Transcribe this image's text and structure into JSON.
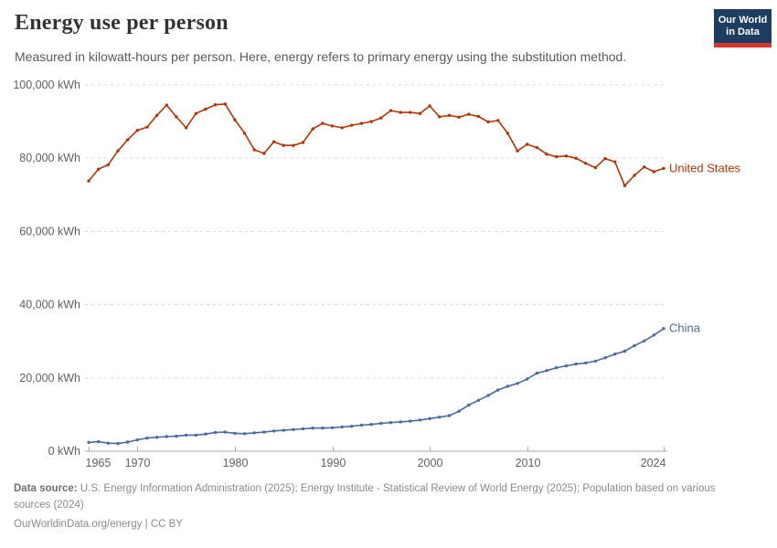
{
  "header": {
    "title": "Energy use per person",
    "subtitle": "Measured in kilowatt-hours per person. Here, energy refers to primary energy using the substitution method.",
    "logo": {
      "line1": "Our World",
      "line2": "in Data",
      "bg_color": "#1d3d63",
      "bar_color": "#d7342e"
    }
  },
  "chart_data": {
    "type": "line",
    "title": "Energy use per person",
    "unit": "kWh",
    "grid": "horizontal-dashed",
    "legend_position": "end-of-line-labels",
    "ylim": [
      0,
      100000
    ],
    "yticks": [
      {
        "value": 0,
        "label": "0 kWh"
      },
      {
        "value": 20000,
        "label": "20,000 kWh"
      },
      {
        "value": 40000,
        "label": "40,000 kWh"
      },
      {
        "value": 60000,
        "label": "60,000 kWh"
      },
      {
        "value": 80000,
        "label": "80,000 kWh"
      },
      {
        "value": 100000,
        "label": "100,000 kWh"
      }
    ],
    "xticks": [
      {
        "value": 1965,
        "label": "1965"
      },
      {
        "value": 1970,
        "label": "1970"
      },
      {
        "value": 1980,
        "label": "1980"
      },
      {
        "value": 1990,
        "label": "1990"
      },
      {
        "value": 2000,
        "label": "2000"
      },
      {
        "value": 2010,
        "label": "2010"
      },
      {
        "value": 2024,
        "label": "2024"
      }
    ],
    "x": [
      1965,
      1966,
      1967,
      1968,
      1969,
      1970,
      1971,
      1972,
      1973,
      1974,
      1975,
      1976,
      1977,
      1978,
      1979,
      1980,
      1981,
      1982,
      1983,
      1984,
      1985,
      1986,
      1987,
      1988,
      1989,
      1990,
      1991,
      1992,
      1993,
      1994,
      1995,
      1996,
      1997,
      1998,
      1999,
      2000,
      2001,
      2002,
      2003,
      2004,
      2005,
      2006,
      2007,
      2008,
      2009,
      2010,
      2011,
      2012,
      2013,
      2014,
      2015,
      2016,
      2017,
      2018,
      2019,
      2020,
      2021,
      2022,
      2023,
      2024
    ],
    "series": [
      {
        "name": "United States",
        "color": "#b13507",
        "values": [
          73800,
          77000,
          78200,
          82000,
          85000,
          87600,
          88500,
          91700,
          94500,
          91300,
          88300,
          92200,
          93400,
          94600,
          94800,
          90500,
          86800,
          82300,
          81300,
          84500,
          83500,
          83500,
          84300,
          88000,
          89500,
          88800,
          88300,
          89000,
          89500,
          90000,
          91000,
          93000,
          92500,
          92500,
          92200,
          94300,
          91300,
          91700,
          91200,
          92000,
          91400,
          89900,
          90300,
          86800,
          82000,
          83800,
          82900,
          81100,
          80400,
          80600,
          80000,
          78600,
          77400,
          79900,
          79000,
          72500,
          75300,
          77600,
          76300,
          77200
        ]
      },
      {
        "name": "China",
        "color": "#4c6a9c",
        "values": [
          2400,
          2600,
          2200,
          2100,
          2500,
          3100,
          3600,
          3800,
          4000,
          4100,
          4400,
          4400,
          4700,
          5100,
          5200,
          4900,
          4800,
          5000,
          5200,
          5500,
          5700,
          5900,
          6100,
          6300,
          6300,
          6400,
          6600,
          6800,
          7100,
          7300,
          7600,
          7800,
          8000,
          8200,
          8500,
          8900,
          9300,
          9700,
          10900,
          12600,
          13900,
          15200,
          16700,
          17700,
          18500,
          19700,
          21300,
          22000,
          22800,
          23300,
          23800,
          24100,
          24600,
          25500,
          26500,
          27300,
          28800,
          30100,
          31700,
          33500
        ]
      }
    ]
  },
  "footer": {
    "source_label": "Data source:",
    "source_text": "U.S. Energy Information Administration (2025); Energy Institute - Statistical Review of World Energy (2025); Population based on various sources (2024)",
    "url": "OurWorldinData.org/energy",
    "separator": " | ",
    "license": "CC BY"
  }
}
